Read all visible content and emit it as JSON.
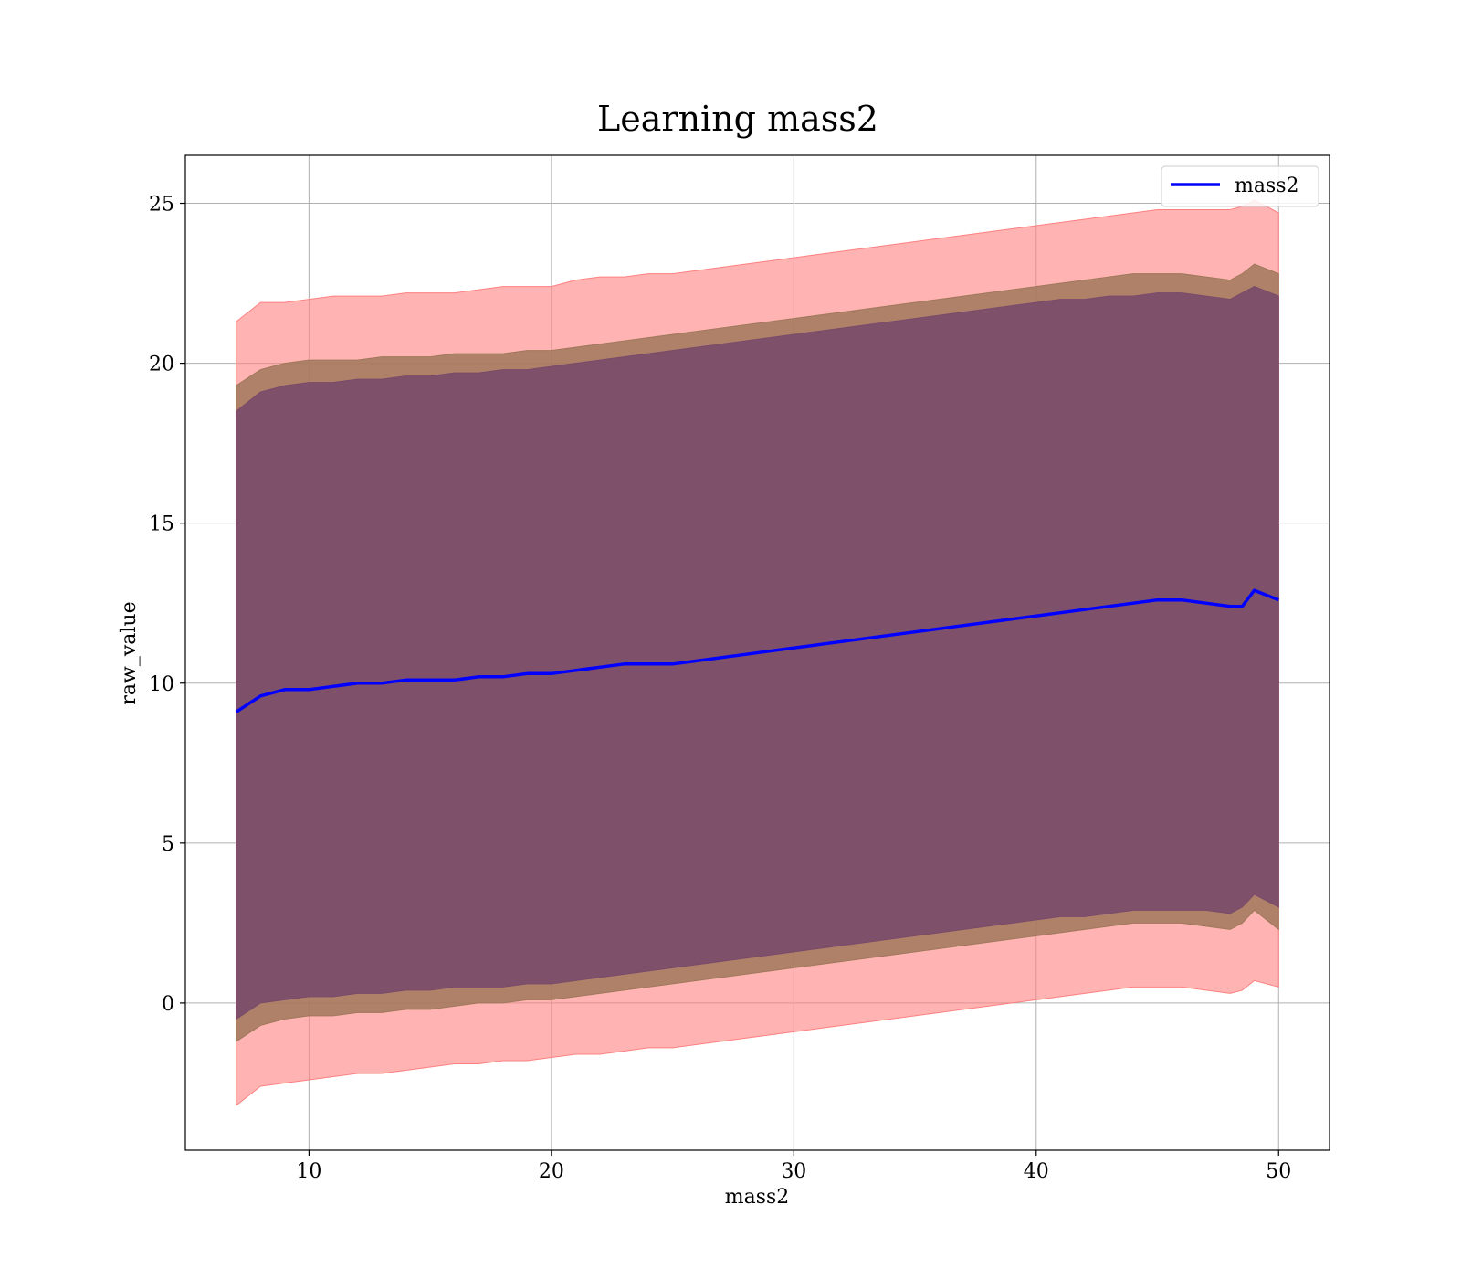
{
  "chart_data": {
    "type": "area",
    "title": "Learning mass2",
    "xlabel": "mass2",
    "ylabel": "raw_value",
    "xlim": [
      4.9,
      52.1
    ],
    "ylim": [
      -4.6,
      26.5
    ],
    "xticks": [
      10,
      20,
      30,
      40,
      50
    ],
    "yticks": [
      0,
      5,
      10,
      15,
      20,
      25
    ],
    "grid": true,
    "legend": {
      "placement": "upper right",
      "entries": [
        "mass2"
      ]
    },
    "colors": {
      "line": "#0000ff",
      "band_outer": "#ff8080",
      "band_middle": "#a0785a",
      "band_inner": "#7a4a6a"
    },
    "series": [
      {
        "name": "mass2",
        "x": [
          7,
          8,
          9,
          10,
          11,
          12,
          13,
          14,
          15,
          16,
          17,
          18,
          19,
          20,
          21,
          22,
          23,
          24,
          25,
          26,
          27,
          28,
          29,
          30,
          31,
          32,
          33,
          34,
          35,
          36,
          37,
          38,
          39,
          40,
          41,
          42,
          43,
          44,
          45,
          46,
          47,
          48,
          48.5,
          49,
          50
        ],
        "y": [
          9.1,
          9.6,
          9.8,
          9.8,
          9.9,
          10.0,
          10.0,
          10.1,
          10.1,
          10.1,
          10.2,
          10.2,
          10.3,
          10.3,
          10.4,
          10.5,
          10.6,
          10.6,
          10.6,
          10.7,
          10.8,
          10.9,
          11.0,
          11.1,
          11.2,
          11.3,
          11.4,
          11.5,
          11.6,
          11.7,
          11.8,
          11.9,
          12.0,
          12.1,
          12.2,
          12.3,
          12.4,
          12.5,
          12.6,
          12.6,
          12.5,
          12.4,
          12.4,
          12.9,
          12.6
        ]
      }
    ],
    "bands": [
      {
        "role": "outer",
        "upper": [
          21.3,
          21.9,
          21.9,
          22.0,
          22.1,
          22.1,
          22.1,
          22.2,
          22.2,
          22.2,
          22.3,
          22.4,
          22.4,
          22.4,
          22.6,
          22.7,
          22.7,
          22.8,
          22.8,
          22.9,
          23.0,
          23.1,
          23.2,
          23.3,
          23.4,
          23.5,
          23.6,
          23.7,
          23.8,
          23.9,
          24.0,
          24.1,
          24.2,
          24.3,
          24.4,
          24.5,
          24.6,
          24.7,
          24.8,
          24.8,
          24.8,
          24.8,
          24.9,
          25.1,
          24.7
        ],
        "lower": [
          -3.2,
          -2.6,
          -2.5,
          -2.4,
          -2.3,
          -2.2,
          -2.2,
          -2.1,
          -2.0,
          -1.9,
          -1.9,
          -1.8,
          -1.8,
          -1.7,
          -1.6,
          -1.6,
          -1.5,
          -1.4,
          -1.4,
          -1.3,
          -1.2,
          -1.1,
          -1.0,
          -0.9,
          -0.8,
          -0.7,
          -0.6,
          -0.5,
          -0.4,
          -0.3,
          -0.2,
          -0.1,
          0.0,
          0.1,
          0.2,
          0.3,
          0.4,
          0.5,
          0.5,
          0.5,
          0.4,
          0.3,
          0.4,
          0.7,
          0.5
        ]
      },
      {
        "role": "middle",
        "upper": [
          19.3,
          19.8,
          20.0,
          20.1,
          20.1,
          20.1,
          20.2,
          20.2,
          20.2,
          20.3,
          20.3,
          20.3,
          20.4,
          20.4,
          20.5,
          20.6,
          20.7,
          20.8,
          20.9,
          21.0,
          21.1,
          21.2,
          21.3,
          21.4,
          21.5,
          21.6,
          21.7,
          21.8,
          21.9,
          22.0,
          22.1,
          22.2,
          22.3,
          22.4,
          22.5,
          22.6,
          22.7,
          22.8,
          22.8,
          22.8,
          22.7,
          22.6,
          22.8,
          23.1,
          22.8
        ],
        "lower": [
          -1.2,
          -0.7,
          -0.5,
          -0.4,
          -0.4,
          -0.3,
          -0.3,
          -0.2,
          -0.2,
          -0.1,
          0.0,
          0.0,
          0.1,
          0.1,
          0.2,
          0.3,
          0.4,
          0.5,
          0.6,
          0.7,
          0.8,
          0.9,
          1.0,
          1.1,
          1.2,
          1.3,
          1.4,
          1.5,
          1.6,
          1.7,
          1.8,
          1.9,
          2.0,
          2.1,
          2.2,
          2.3,
          2.4,
          2.5,
          2.5,
          2.5,
          2.4,
          2.3,
          2.5,
          2.9,
          2.3
        ]
      },
      {
        "role": "inner",
        "upper": [
          18.5,
          19.1,
          19.3,
          19.4,
          19.4,
          19.5,
          19.5,
          19.6,
          19.6,
          19.7,
          19.7,
          19.8,
          19.8,
          19.9,
          20.0,
          20.1,
          20.2,
          20.3,
          20.4,
          20.5,
          20.6,
          20.7,
          20.8,
          20.9,
          21.0,
          21.1,
          21.2,
          21.3,
          21.4,
          21.5,
          21.6,
          21.7,
          21.8,
          21.9,
          22.0,
          22.0,
          22.1,
          22.1,
          22.2,
          22.2,
          22.1,
          22.0,
          22.2,
          22.4,
          22.1
        ],
        "lower": [
          -0.5,
          0.0,
          0.1,
          0.2,
          0.2,
          0.3,
          0.3,
          0.4,
          0.4,
          0.5,
          0.5,
          0.5,
          0.6,
          0.6,
          0.7,
          0.8,
          0.9,
          1.0,
          1.1,
          1.2,
          1.3,
          1.4,
          1.5,
          1.6,
          1.7,
          1.8,
          1.9,
          2.0,
          2.1,
          2.2,
          2.3,
          2.4,
          2.5,
          2.6,
          2.7,
          2.7,
          2.8,
          2.9,
          2.9,
          2.9,
          2.9,
          2.8,
          3.0,
          3.4,
          3.0
        ]
      }
    ]
  }
}
